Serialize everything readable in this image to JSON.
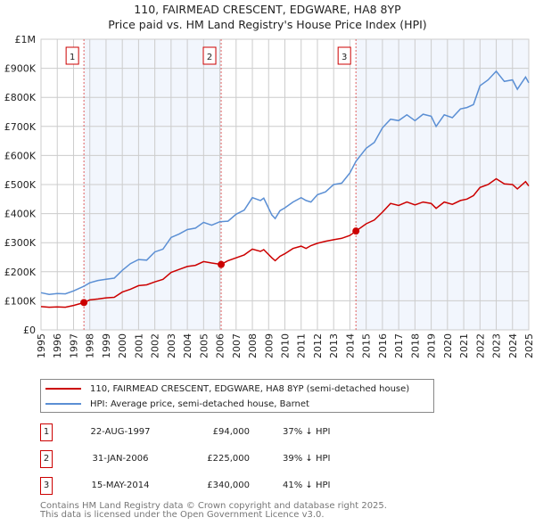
{
  "chart_data": {
    "type": "line",
    "title": "110, FAIRMEAD CRESCENT, EDGWARE, HA8 8YP",
    "subtitle": "Price paid vs. HM Land Registry's House Price Index (HPI)",
    "xlim": [
      1995,
      2025
    ],
    "ylim": [
      0,
      1000000
    ],
    "y_ticks": [
      {
        "v": 0,
        "label": "£0"
      },
      {
        "v": 100000,
        "label": "£100K"
      },
      {
        "v": 200000,
        "label": "£200K"
      },
      {
        "v": 300000,
        "label": "£300K"
      },
      {
        "v": 400000,
        "label": "£400K"
      },
      {
        "v": 500000,
        "label": "£500K"
      },
      {
        "v": 600000,
        "label": "£600K"
      },
      {
        "v": 700000,
        "label": "£700K"
      },
      {
        "v": 800000,
        "label": "£800K"
      },
      {
        "v": 900000,
        "label": "£900K"
      },
      {
        "v": 1000000,
        "label": "£1M"
      }
    ],
    "x_ticks": [
      "1995",
      "1996",
      "1997",
      "1998",
      "1999",
      "2000",
      "2001",
      "2002",
      "2003",
      "2004",
      "2005",
      "2006",
      "2007",
      "2008",
      "2009",
      "2010",
      "2011",
      "2012",
      "2013",
      "2014",
      "2015",
      "2016",
      "2017",
      "2018",
      "2019",
      "2020",
      "2021",
      "2022",
      "2023",
      "2024",
      "2025"
    ],
    "grid": true,
    "series": [
      {
        "name": "110, FAIRMEAD CRESCENT, EDGWARE, HA8 8YP (semi-detached house)",
        "color": "#cc0000",
        "x": [
          1995,
          1995.5,
          1996,
          1996.5,
          1997,
          1997.64,
          1998,
          1998.5,
          1999,
          1999.5,
          2000,
          2000.5,
          2001,
          2001.5,
          2002,
          2002.5,
          2003,
          2003.5,
          2004,
          2004.5,
          2005,
          2005.5,
          2006.08,
          2006.5,
          2007,
          2007.5,
          2008,
          2008.5,
          2008.7,
          2009.2,
          2009.4,
          2009.7,
          2010,
          2010.5,
          2011,
          2011.3,
          2011.6,
          2012,
          2012.5,
          2013,
          2013.5,
          2014,
          2014.37,
          2015,
          2015.5,
          2016,
          2016.5,
          2017,
          2017.5,
          2018,
          2018.5,
          2019,
          2019.3,
          2019.8,
          2020.3,
          2020.8,
          2021.2,
          2021.6,
          2022,
          2022.5,
          2023,
          2023.5,
          2024,
          2024.3,
          2024.8,
          2025
        ],
        "values": [
          80000,
          78000,
          79000,
          78000,
          84000,
          94000,
          103000,
          106000,
          110000,
          112000,
          130000,
          140000,
          152000,
          155000,
          165000,
          174000,
          198000,
          208000,
          218000,
          222000,
          235000,
          230000,
          225000,
          238000,
          248000,
          258000,
          278000,
          270000,
          276000,
          248000,
          238000,
          253000,
          262000,
          280000,
          288000,
          280000,
          290000,
          298000,
          305000,
          310000,
          315000,
          325000,
          340000,
          365000,
          378000,
          405000,
          435000,
          428000,
          440000,
          430000,
          440000,
          435000,
          418000,
          440000,
          432000,
          445000,
          450000,
          462000,
          490000,
          500000,
          520000,
          502000,
          500000,
          485000,
          510000,
          495000
        ]
      },
      {
        "name": "HPI: Average price, semi-detached house, Barnet",
        "color": "#5b8fd4",
        "x": [
          1995,
          1995.5,
          1996,
          1996.5,
          1997,
          1997.64,
          1998,
          1998.5,
          1999,
          1999.5,
          2000,
          2000.5,
          2001,
          2001.5,
          2002,
          2002.5,
          2003,
          2003.5,
          2004,
          2004.5,
          2005,
          2005.5,
          2006,
          2006.5,
          2007,
          2007.5,
          2008,
          2008.5,
          2008.7,
          2009.2,
          2009.4,
          2009.7,
          2010,
          2010.5,
          2011,
          2011.3,
          2011.6,
          2012,
          2012.5,
          2013,
          2013.5,
          2014,
          2014.37,
          2015,
          2015.5,
          2016,
          2016.5,
          2017,
          2017.5,
          2018,
          2018.5,
          2019,
          2019.3,
          2019.8,
          2020.3,
          2020.8,
          2021.2,
          2021.6,
          2022,
          2022.5,
          2023,
          2023.5,
          2024,
          2024.3,
          2024.8,
          2025
        ],
        "values": [
          128000,
          122000,
          125000,
          124000,
          134000,
          150000,
          162000,
          170000,
          174000,
          178000,
          205000,
          228000,
          242000,
          240000,
          268000,
          278000,
          318000,
          330000,
          345000,
          350000,
          370000,
          360000,
          372000,
          374000,
          398000,
          412000,
          455000,
          445000,
          453000,
          395000,
          383000,
          410000,
          420000,
          440000,
          455000,
          445000,
          440000,
          465000,
          475000,
          500000,
          505000,
          540000,
          580000,
          625000,
          645000,
          695000,
          725000,
          720000,
          740000,
          720000,
          742000,
          735000,
          700000,
          740000,
          730000,
          760000,
          765000,
          775000,
          840000,
          860000,
          890000,
          855000,
          860000,
          828000,
          870000,
          850000
        ]
      }
    ],
    "sales": [
      {
        "id": "1",
        "x": 1997.64,
        "value": 94000,
        "date": "22-AUG-1997",
        "price": "£94,000",
        "hpi": "37% ↓ HPI"
      },
      {
        "id": "2",
        "x": 2006.08,
        "value": 225000,
        "date": "31-JAN-2006",
        "price": "£225,000",
        "hpi": "39% ↓ HPI"
      },
      {
        "id": "3",
        "x": 2014.37,
        "value": 340000,
        "date": "15-MAY-2014",
        "price": "£340,000",
        "hpi": "41% ↓ HPI"
      }
    ],
    "legend_placement": "below"
  },
  "footer": {
    "line1": "Contains HM Land Registry data © Crown copyright and database right 2025.",
    "line2": "This data is licensed under the Open Government Licence v3.0."
  }
}
